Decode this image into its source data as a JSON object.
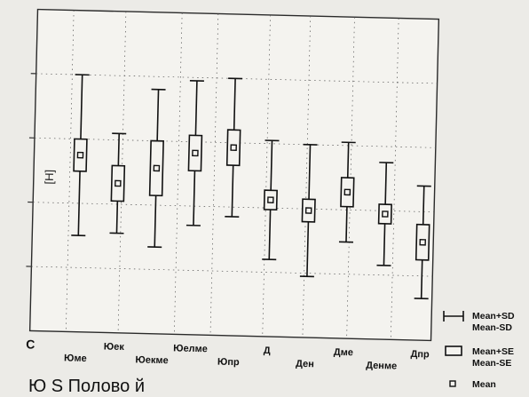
{
  "chart_data": {
    "type": "box",
    "title": "",
    "xlabel": "",
    "ylabel": "",
    "grid": true,
    "legend_position": "bottom-right",
    "y_range": [
      0,
      100
    ],
    "categories": [
      "Юме",
      "Юек",
      "Юекме",
      "Юелме",
      "Юпр",
      "Д",
      "Ден",
      "Дме",
      "Денме",
      "Дпр"
    ],
    "series": [
      {
        "mean": 55.0,
        "se_low": 50.0,
        "se_high": 60.0,
        "sd_low": 30.0,
        "sd_high": 80.0
      },
      {
        "mean": 46.5,
        "se_low": 41.0,
        "se_high": 52.0,
        "sd_low": 31.0,
        "sd_high": 62.0
      },
      {
        "mean": 51.5,
        "se_low": 43.0,
        "se_high": 60.0,
        "sd_low": 27.0,
        "sd_high": 76.0
      },
      {
        "mean": 56.5,
        "se_low": 51.0,
        "se_high": 62.0,
        "sd_low": 34.0,
        "sd_high": 79.0
      },
      {
        "mean": 58.5,
        "se_low": 53.0,
        "se_high": 64.0,
        "sd_low": 37.0,
        "sd_high": 80.0
      },
      {
        "mean": 42.5,
        "se_low": 39.5,
        "se_high": 45.5,
        "sd_low": 24.0,
        "sd_high": 61.0
      },
      {
        "mean": 39.5,
        "se_low": 36.0,
        "se_high": 43.0,
        "sd_low": 19.0,
        "sd_high": 60.0
      },
      {
        "mean": 45.5,
        "se_low": 41.0,
        "se_high": 50.0,
        "sd_low": 30.0,
        "sd_high": 61.0
      },
      {
        "mean": 39.0,
        "se_low": 36.0,
        "se_high": 42.0,
        "sd_low": 23.0,
        "sd_high": 55.0
      },
      {
        "mean": 30.5,
        "se_low": 25.0,
        "se_high": 36.0,
        "sd_low": 13.0,
        "sd_high": 48.0
      }
    ],
    "legend": [
      {
        "symbol": "whisker",
        "labels": [
          "Mean+SD",
          "Mean-SD"
        ]
      },
      {
        "symbol": "box",
        "labels": [
          "Mean+SE",
          "Mean-SE"
        ]
      },
      {
        "symbol": "point",
        "labels": [
          "Mean"
        ]
      }
    ],
    "corner_label": "C",
    "y_axis_fragment": "[H]"
  },
  "caption_fragment": "Ю  S  Полово  й"
}
